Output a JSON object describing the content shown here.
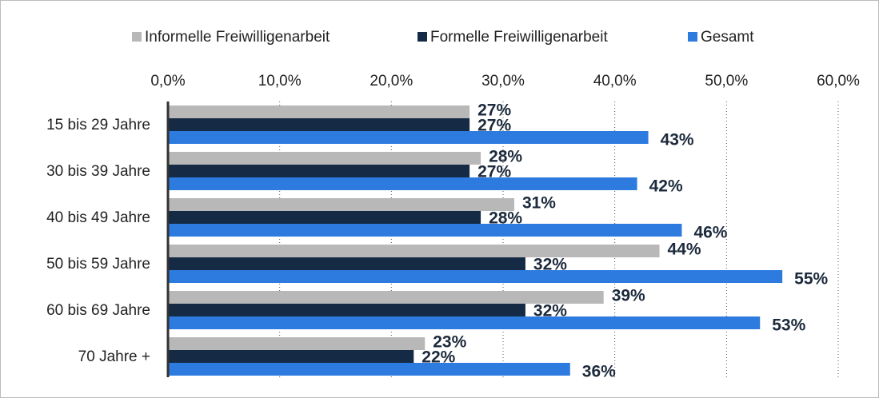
{
  "chart_data": {
    "type": "bar",
    "orientation": "horizontal",
    "categories": [
      "15 bis 29 Jahre",
      "30 bis 39 Jahre",
      "40 bis 49 Jahre",
      "50 bis 59 Jahre",
      "60 bis 69 Jahre",
      "70 Jahre +"
    ],
    "series": [
      {
        "name": "Informelle Freiwilligenarbeit",
        "color": "#b8b8b8",
        "values": [
          27,
          28,
          31,
          44,
          39,
          23
        ],
        "value_labels": [
          "27%",
          "28%",
          "31%",
          "44%",
          "39%",
          "23%"
        ]
      },
      {
        "name": "Formelle Freiwilligenarbeit",
        "color": "#152a45",
        "values": [
          27,
          27,
          28,
          32,
          32,
          22
        ],
        "value_labels": [
          "27%",
          "27%",
          "28%",
          "32%",
          "32%",
          "22%"
        ]
      },
      {
        "name": "Gesamt",
        "color": "#2e7be0",
        "values": [
          43,
          42,
          46,
          55,
          53,
          36
        ],
        "value_labels": [
          "43%",
          "42%",
          "46%",
          "55%",
          "53%",
          "36%"
        ]
      }
    ],
    "xlim": [
      0,
      60
    ],
    "xticks": [
      {
        "value": 0,
        "label": "0,0%"
      },
      {
        "value": 10,
        "label": "10,0%"
      },
      {
        "value": 20,
        "label": "20,0%"
      },
      {
        "value": 30,
        "label": "30,0%"
      },
      {
        "value": 40,
        "label": "40,0%"
      },
      {
        "value": 50,
        "label": "50,0%"
      },
      {
        "value": 60,
        "label": "60,0%"
      }
    ],
    "grid": true,
    "legend": "top"
  }
}
